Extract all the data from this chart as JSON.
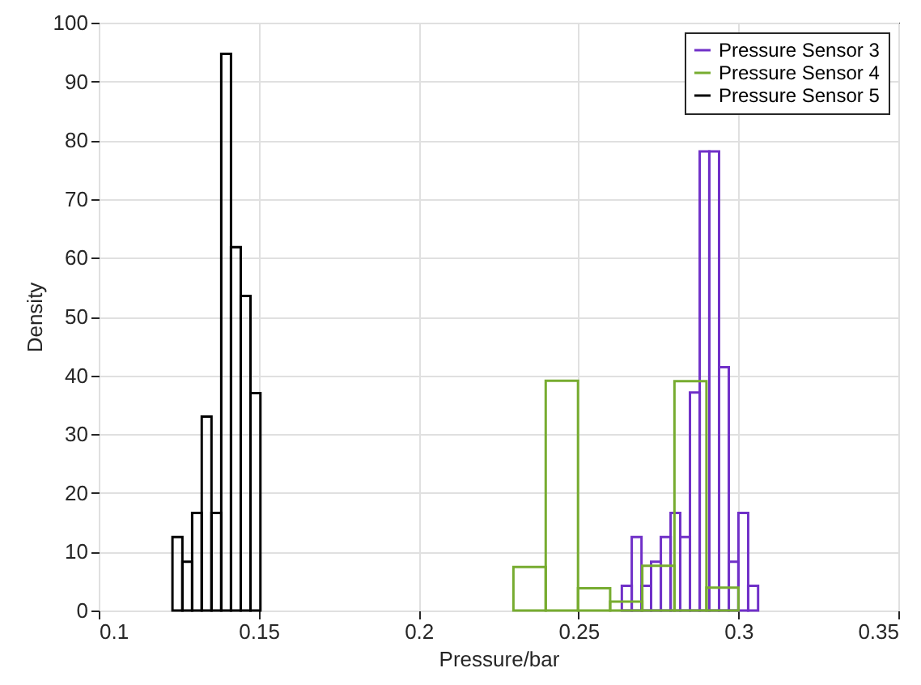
{
  "chart_data": {
    "type": "bar",
    "xlabel": "Pressure/bar",
    "ylabel": "Density",
    "series": [
      {
        "name": "Pressure Sensor 3",
        "color": "#7030c8",
        "x": [
          0.2651,
          0.2682,
          0.2712,
          0.2742,
          0.2773,
          0.2803,
          0.2833,
          0.2864,
          0.2894,
          0.2924,
          0.2955,
          0.2985,
          0.3015,
          0.3046
        ],
        "values": [
          4.2,
          12.5,
          4.2,
          8.3,
          12.5,
          16.6,
          12.5,
          37.1,
          78.1,
          78.1,
          41.4,
          8.3,
          16.6,
          4.2
        ]
      },
      {
        "name": "Pressure Sensor 4",
        "color": "#77ac30",
        "x": [
          0.2347,
          0.2448,
          0.2549,
          0.2649,
          0.275,
          0.285,
          0.295
        ],
        "values": [
          7.4,
          39.1,
          3.8,
          1.5,
          7.6,
          39.0,
          3.9
        ]
      },
      {
        "name": "Pressure Sensor 5",
        "color": "#000000",
        "x": [
          0.1246,
          0.1277,
          0.1307,
          0.1337,
          0.1368,
          0.1398,
          0.1429,
          0.1459,
          0.149
        ],
        "values": [
          12.5,
          8.3,
          16.6,
          33.0,
          16.6,
          94.7,
          61.8,
          53.5,
          37.0
        ]
      }
    ],
    "xlim": [
      0.1,
      0.35
    ],
    "xticks": [
      0.1,
      0.15,
      0.2,
      0.25,
      0.3,
      0.35
    ],
    "ylim": [
      0,
      100
    ],
    "yticks": [
      0,
      10,
      20,
      30,
      40,
      50,
      60,
      70,
      80,
      90,
      100
    ],
    "grid": true,
    "legend": "top right"
  }
}
